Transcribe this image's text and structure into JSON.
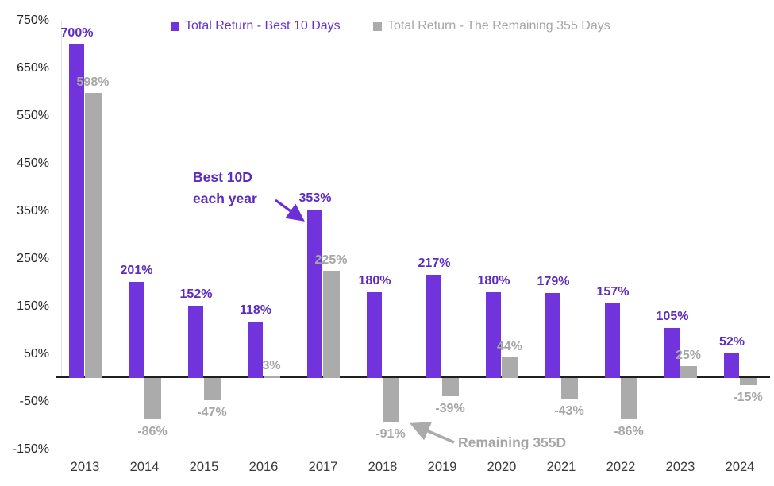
{
  "chart_data": {
    "type": "bar",
    "title": "",
    "categories": [
      "2013",
      "2014",
      "2015",
      "2016",
      "2017",
      "2018",
      "2019",
      "2020",
      "2021",
      "2022",
      "2023",
      "2024"
    ],
    "series": [
      {
        "name": "Total Return - Best 10 Days",
        "values": [
          700,
          201,
          152,
          118,
          353,
          180,
          217,
          180,
          179,
          157,
          105,
          52
        ],
        "labels": [
          "700%",
          "201%",
          "152%",
          "118%",
          "353%",
          "180%",
          "217%",
          "180%",
          "179%",
          "157%",
          "105%",
          "52%"
        ],
        "color": "#7133DB",
        "label_color": "#5C2BBF"
      },
      {
        "name": "Total Return - The Remaining 355 Days",
        "values": [
          598,
          -86,
          -47,
          3,
          225,
          -91,
          -39,
          44,
          -43,
          -86,
          25,
          -15
        ],
        "labels": [
          "598%",
          "-86%",
          "-47%",
          "3%",
          "225%",
          "-91%",
          "-39%",
          "44%",
          "-43%",
          "-86%",
          "25%",
          "-15%"
        ],
        "color": "#ABABAB",
        "label_color": "#A6A6A6"
      }
    ],
    "y_axis": {
      "tick_labels": [
        "750%",
        "650%",
        "550%",
        "450%",
        "350%",
        "250%",
        "150%",
        "50%",
        "-50%",
        "-150%"
      ],
      "tick_values": [
        750,
        650,
        550,
        450,
        350,
        250,
        150,
        50,
        -50,
        -150
      ],
      "min": -150,
      "max": 750,
      "grid": false
    },
    "legend_position": "top",
    "annotations": [
      {
        "lines": [
          "Best 10D",
          "each year"
        ],
        "color": "#5C2BBF",
        "target_series": "Total Return - Best 10 Days",
        "target_category": "2017"
      },
      {
        "lines": [
          "Remaining 355D"
        ],
        "color": "#A6A6A6",
        "target_series": "Total Return - The Remaining 355 Days",
        "target_category": "2018"
      }
    ]
  },
  "legend": {
    "items": [
      {
        "label": "Total Return - Best 10 Days",
        "swatch_color": "#7133DB"
      },
      {
        "label": "Total Return - The Remaining 355 Days",
        "swatch_color": "#ABABAB"
      }
    ]
  }
}
